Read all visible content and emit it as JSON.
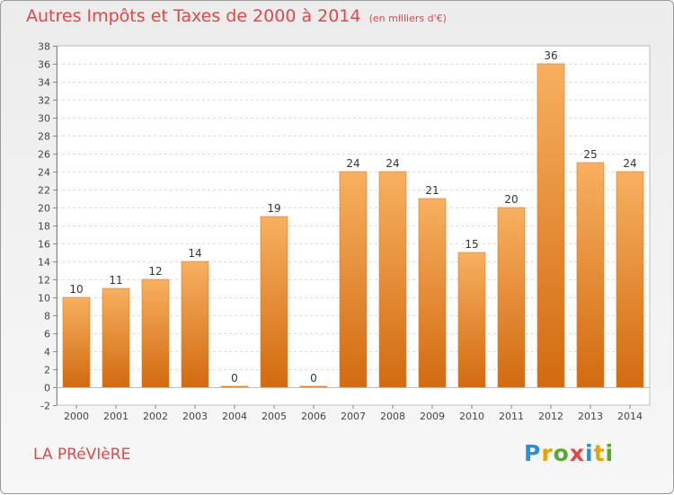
{
  "title": "Autres Impôts et Taxes de 2000 à 2014",
  "unit_label": "(en milliers d'€)",
  "commune": "LA PRéVIèRE",
  "logo": {
    "letters": [
      "P",
      "r",
      "o",
      "x",
      "i",
      "t",
      "i"
    ],
    "colors": [
      "#2b8fd6",
      "#e9a200",
      "#5aa82e",
      "#e04848",
      "#2b8fd6",
      "#e9a200",
      "#5aa82e"
    ]
  },
  "colors": {
    "title": "#e04848",
    "bar": "#f08a24",
    "bar_light": "#f7b060",
    "bar_dark": "#d26a10"
  },
  "chart_data": {
    "type": "bar",
    "categories": [
      "2000",
      "2001",
      "2002",
      "2003",
      "2004",
      "2005",
      "2006",
      "2007",
      "2008",
      "2009",
      "2010",
      "2011",
      "2012",
      "2013",
      "2014"
    ],
    "values": [
      10,
      11,
      12,
      14,
      0,
      19,
      0,
      24,
      24,
      21,
      15,
      20,
      36,
      25,
      24
    ],
    "data_labels": [
      "10",
      "11",
      "12",
      "14",
      "0",
      "19",
      "0",
      "24",
      "24",
      "21",
      "15",
      "20",
      "36",
      "25",
      "24"
    ],
    "title": "Autres Impôts et Taxes de 2000 à 2014",
    "xlabel": "",
    "ylabel": "",
    "ylim": [
      -2,
      38
    ],
    "yticks": [
      "-2",
      "0",
      "2",
      "4",
      "6",
      "8",
      "10",
      "12",
      "14",
      "16",
      "18",
      "20",
      "22",
      "24",
      "26",
      "28",
      "30",
      "32",
      "34",
      "36",
      "38"
    ],
    "grid": true
  }
}
